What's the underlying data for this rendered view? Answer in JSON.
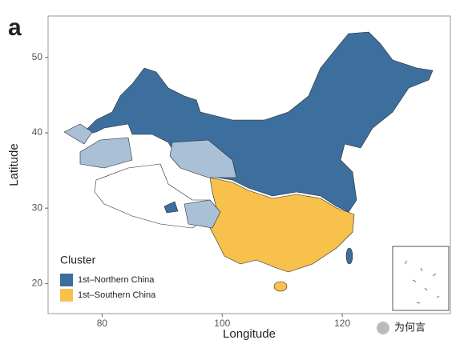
{
  "panel_label": "a",
  "watermark": "为何言",
  "chart_data": {
    "type": "map",
    "x_label": "Longitude",
    "y_label": "Latitude",
    "xlim": [
      71,
      138
    ],
    "ylim": [
      16,
      55.5
    ],
    "xticks": [
      80,
      100,
      120
    ],
    "yticks": [
      20,
      30,
      40,
      50
    ],
    "legend_title": "Cluster",
    "legend": "bottom-left",
    "series": [
      {
        "name": "1st–Northern China",
        "color": "#3c6f9e"
      },
      {
        "name": "1st–Southern China",
        "color": "#f8c14b"
      }
    ]
  }
}
